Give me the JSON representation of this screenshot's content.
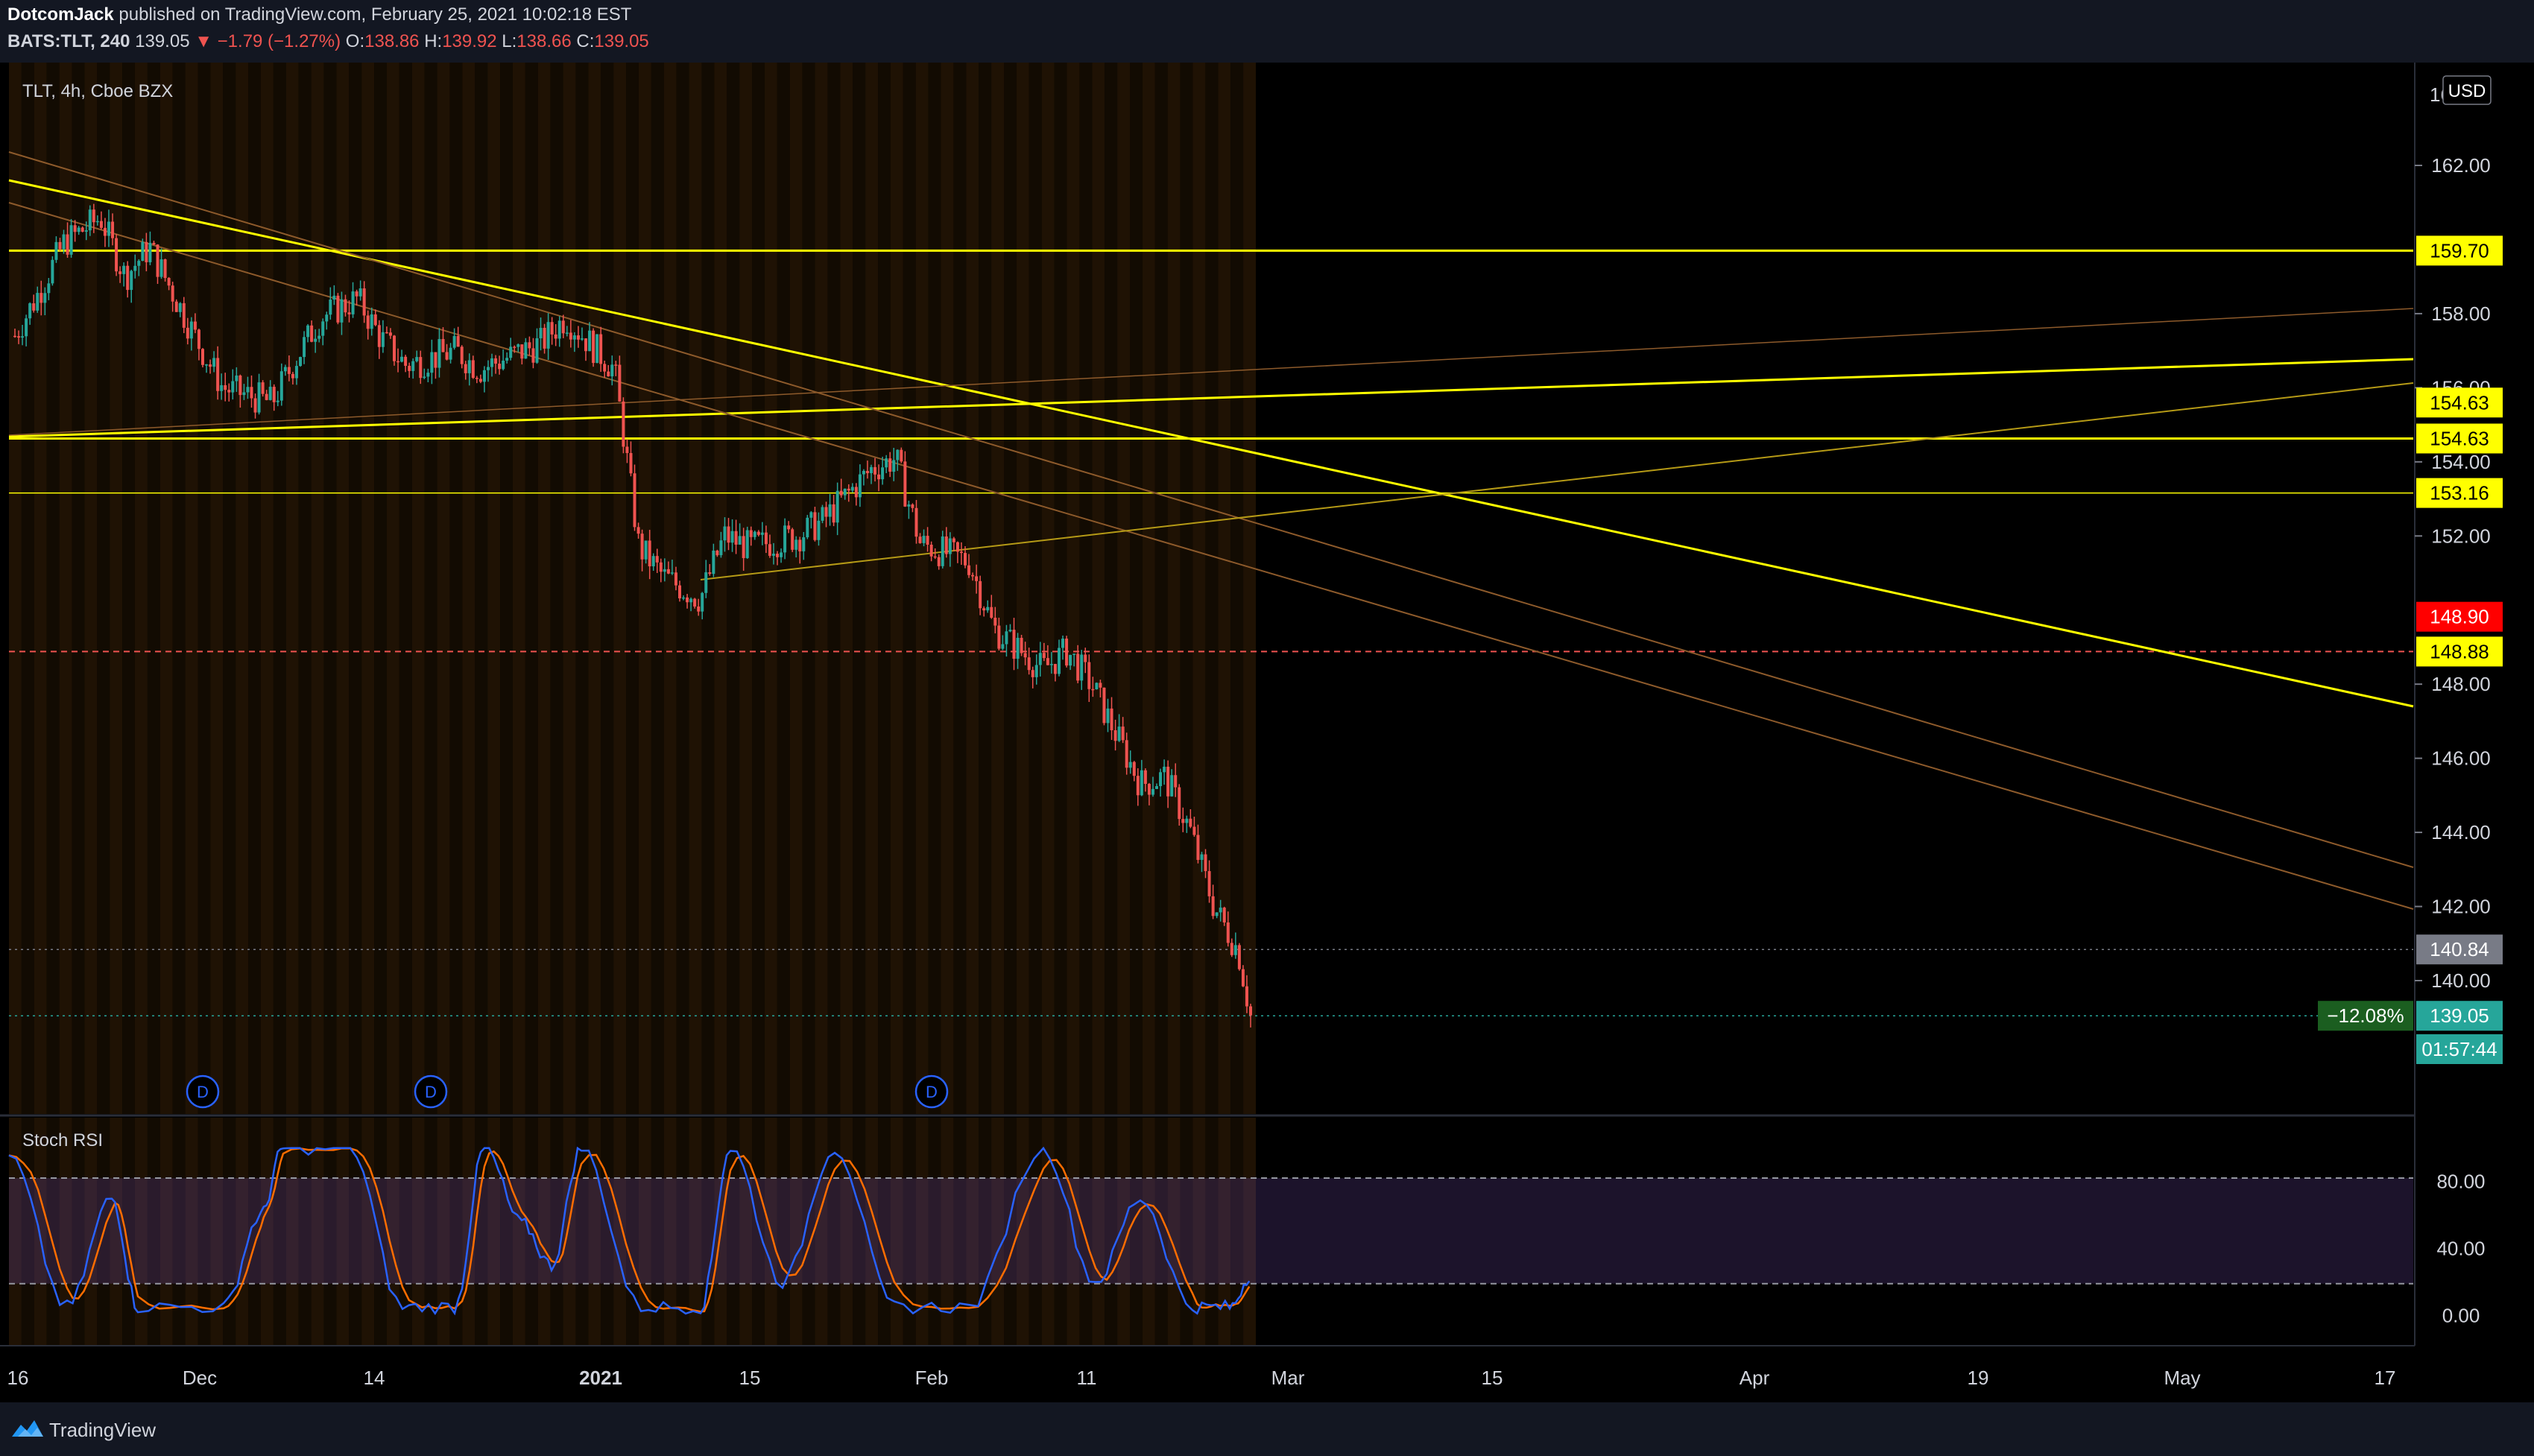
{
  "header": {
    "author": "DotcomJack",
    "published_text": "published on TradingView.com, February 25, 2021 10:02:18 EST",
    "symbol": "BATS:TLT, 240",
    "last": "139.05",
    "change_arrow": "▼",
    "change": "−1.79 (−1.27%)",
    "o_label": "O:",
    "o_value": "138.86",
    "h_label": "H:",
    "h_value": "139.92",
    "l_label": "L:",
    "l_value": "138.66",
    "c_label": "C:",
    "c_value": "139.05"
  },
  "legend": {
    "title": "TLT, 4h, Cboe BZX"
  },
  "currency_button": "USD",
  "price_axis": {
    "ticks": [
      "162.00",
      "158.00",
      "156.00",
      "154.00",
      "152.00",
      "148.00",
      "146.00",
      "144.00",
      "142.00",
      "140.00"
    ],
    "top_partial": "16"
  },
  "price_labels": [
    {
      "text": "159.70",
      "price": 159.7,
      "bg": "#ffff00",
      "fg": "#000000"
    },
    {
      "text": "154.63",
      "price": 155.6,
      "bg": "#ffff00",
      "fg": "#000000"
    },
    {
      "text": "154.63",
      "price": 154.63,
      "bg": "#ffff00",
      "fg": "#000000"
    },
    {
      "text": "153.16",
      "price": 153.16,
      "bg": "#ffff00",
      "fg": "#000000"
    },
    {
      "text": "148.90",
      "price": 149.82,
      "bg": "#ff0000",
      "fg": "#ffffff"
    },
    {
      "text": "148.88",
      "price": 148.88,
      "bg": "#ffff00",
      "fg": "#000000"
    },
    {
      "text": "140.84",
      "price": 140.84,
      "bg": "#787b86",
      "fg": "#ffffff"
    },
    {
      "text": "139.05",
      "price": 139.05,
      "bg": "#26a69a",
      "fg": "#ffffff"
    },
    {
      "text": "01:57:44",
      "price": 138.15,
      "bg": "#26a69a",
      "fg": "#ffffff"
    }
  ],
  "pct_label": "−12.08%",
  "dividend_markers": [
    "D",
    "D",
    "D"
  ],
  "time_axis": [
    "16",
    "Dec",
    "14",
    "2021",
    "15",
    "Feb",
    "11",
    "Mar",
    "15",
    "Apr",
    "19",
    "May",
    "17"
  ],
  "stoch": {
    "title": "Stoch RSI",
    "ticks": [
      "80.00",
      "40.00",
      "0.00"
    ]
  },
  "footer": {
    "brand": "TradingView"
  },
  "colors": {
    "up": "#26a69a",
    "down": "#ef5350",
    "level": "#ffff00",
    "stoch_k": "#2962ff",
    "stoch_d": "#ff6d00",
    "band": "#7e57c2"
  },
  "chart_data": {
    "type": "candlestick",
    "symbol": "TLT",
    "interval": "4h",
    "exchange": "Cboe BZX",
    "ylim": [
      137.5,
      164.0
    ],
    "close_path": [
      {
        "date": "2020-11-16",
        "close": 157.4
      },
      {
        "date": "2020-11-18",
        "close": 158.6
      },
      {
        "date": "2020-11-20",
        "close": 159.9
      },
      {
        "date": "2020-11-23",
        "close": 160.6
      },
      {
        "date": "2020-11-25",
        "close": 159.0
      },
      {
        "date": "2020-11-27",
        "close": 159.8
      },
      {
        "date": "2020-12-01",
        "close": 157.2
      },
      {
        "date": "2020-12-03",
        "close": 156.0
      },
      {
        "date": "2020-12-07",
        "close": 155.6
      },
      {
        "date": "2020-12-09",
        "close": 156.8
      },
      {
        "date": "2020-12-11",
        "close": 157.9
      },
      {
        "date": "2020-12-14",
        "close": 158.4
      },
      {
        "date": "2020-12-16",
        "close": 157.3
      },
      {
        "date": "2020-12-18",
        "close": 156.6
      },
      {
        "date": "2020-12-22",
        "close": 157.0
      },
      {
        "date": "2020-12-24",
        "close": 156.5
      },
      {
        "date": "2020-12-29",
        "close": 157.2
      },
      {
        "date": "2020-12-31",
        "close": 157.9
      },
      {
        "date": "2021-01-04",
        "close": 156.5
      },
      {
        "date": "2021-01-06",
        "close": 151.7
      },
      {
        "date": "2021-01-08",
        "close": 150.9
      },
      {
        "date": "2021-01-11",
        "close": 150.3
      },
      {
        "date": "2021-01-13",
        "close": 152.0
      },
      {
        "date": "2021-01-15",
        "close": 151.7
      },
      {
        "date": "2021-01-19",
        "close": 152.0
      },
      {
        "date": "2021-01-21",
        "close": 152.4
      },
      {
        "date": "2021-01-25",
        "close": 153.8
      },
      {
        "date": "2021-01-27",
        "close": 154.1
      },
      {
        "date": "2021-01-29",
        "close": 151.8
      },
      {
        "date": "2021-02-02",
        "close": 151.3
      },
      {
        "date": "2021-02-04",
        "close": 149.5
      },
      {
        "date": "2021-02-08",
        "close": 148.4
      },
      {
        "date": "2021-02-10",
        "close": 148.9
      },
      {
        "date": "2021-02-12",
        "close": 148.0
      },
      {
        "date": "2021-02-16",
        "close": 145.3
      },
      {
        "date": "2021-02-18",
        "close": 145.5
      },
      {
        "date": "2021-02-20",
        "close": 144.1
      },
      {
        "date": "2021-02-22",
        "close": 142.0
      },
      {
        "date": "2021-02-24",
        "close": 140.8
      },
      {
        "date": "2021-02-25",
        "close": 139.05
      }
    ],
    "horizontal_levels": [
      159.7,
      154.63,
      153.16,
      148.88
    ],
    "dashed_level": 148.88,
    "stoch_rsi_bands": [
      20,
      80
    ]
  }
}
